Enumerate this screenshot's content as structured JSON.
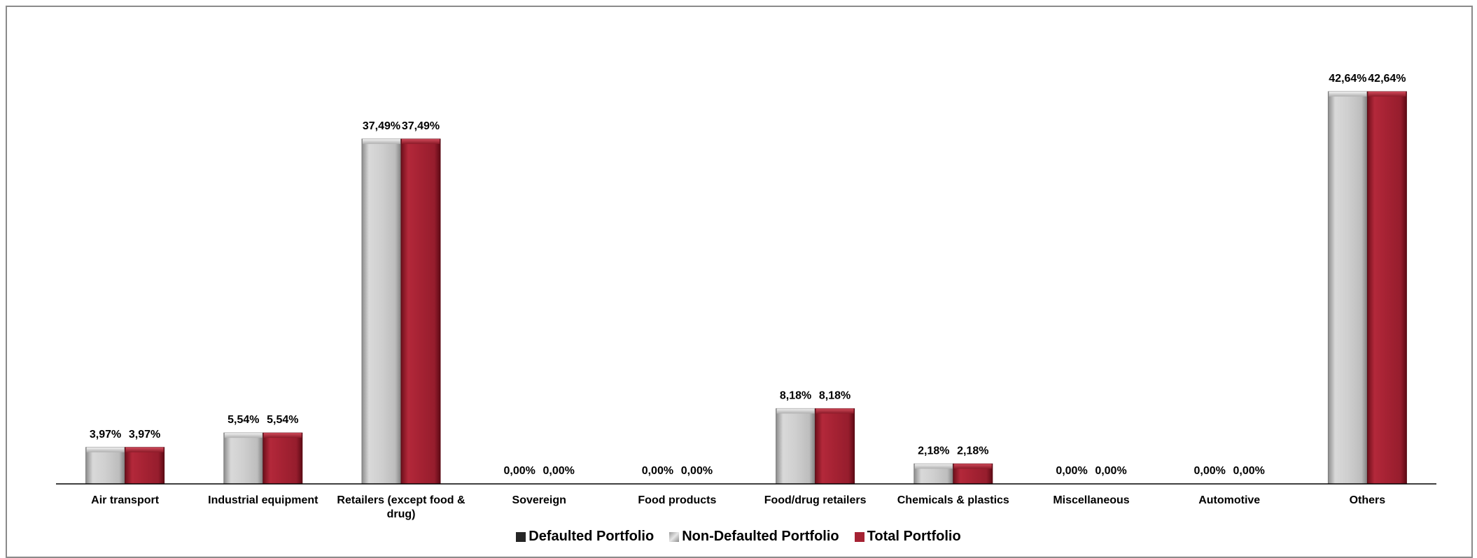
{
  "chart_data": {
    "type": "bar",
    "categories": [
      "Air transport",
      "Industrial equipment",
      "Retailers (except food & drug)",
      "Sovereign",
      "Food products",
      "Food/drug retailers",
      "Chemicals & plastics",
      "Miscellaneous",
      "Automotive",
      "Others"
    ],
    "category_lines": [
      [
        "Air transport"
      ],
      [
        "Industrial equipment"
      ],
      [
        "Retailers (except food &",
        "drug)"
      ],
      [
        "Sovereign"
      ],
      [
        "Food products"
      ],
      [
        "Food/drug retailers"
      ],
      [
        "Chemicals & plastics"
      ],
      [
        "Miscellaneous"
      ],
      [
        "Automotive"
      ],
      [
        "Others"
      ]
    ],
    "series": [
      {
        "name": "Defaulted Portfolio",
        "color": "#262626",
        "values": [
          0,
          0,
          0,
          0,
          0,
          0,
          0,
          0,
          0,
          0
        ],
        "show_bars": false,
        "show_labels": false
      },
      {
        "name": "Non-Defaulted Portfolio",
        "color": "#c8c8c8",
        "values": [
          3.97,
          5.54,
          37.49,
          0.0,
          0.0,
          8.18,
          2.18,
          0.0,
          0.0,
          42.64
        ],
        "labels": [
          "3,97%",
          "5,54%",
          "37,49%",
          "0,00%",
          "0,00%",
          "8,18%",
          "2,18%",
          "0,00%",
          "0,00%",
          "42,64%"
        ],
        "show_bars": true,
        "show_labels": true
      },
      {
        "name": "Total Portfolio",
        "color": "#a52233",
        "values": [
          3.97,
          5.54,
          37.49,
          0.0,
          0.0,
          8.18,
          2.18,
          0.0,
          0.0,
          42.64
        ],
        "labels": [
          "3,97%",
          "5,54%",
          "37,49%",
          "0,00%",
          "0,00%",
          "8,18%",
          "2,18%",
          "0,00%",
          "0,00%",
          "42,64%"
        ],
        "show_bars": true,
        "show_labels": true
      }
    ],
    "ylim": [
      0,
      45
    ],
    "grid": false,
    "legend_position": "bottom",
    "title": "",
    "xlabel": "",
    "ylabel": ""
  }
}
